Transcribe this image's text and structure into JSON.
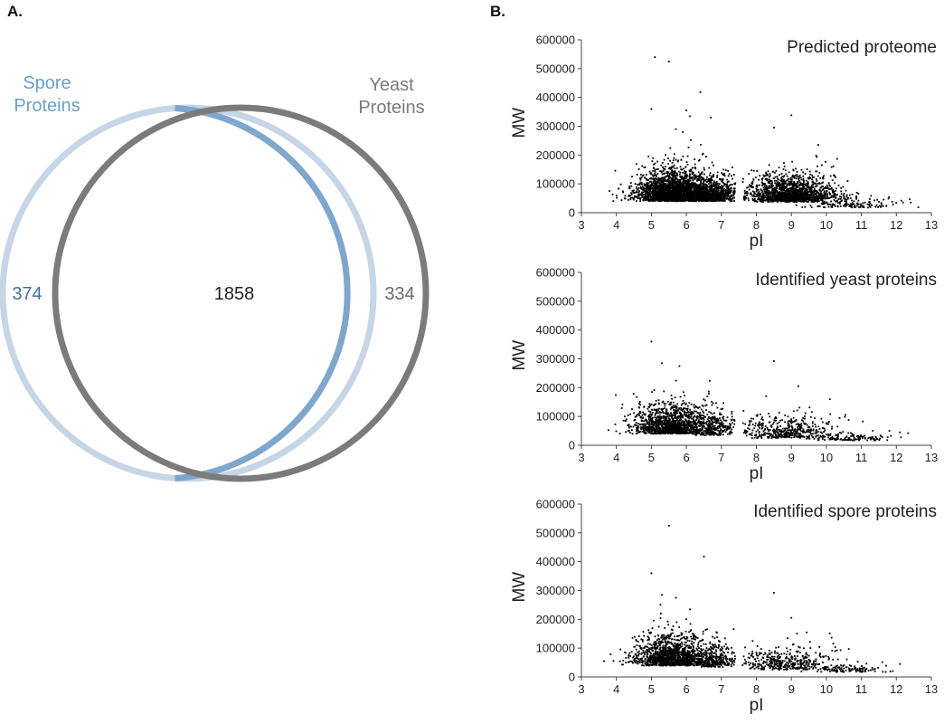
{
  "panels": {
    "a": {
      "label": "A.",
      "venn": {
        "set_a": {
          "name_line1": "Spore",
          "name_line2": "Proteins",
          "only_count": "374",
          "color": "#7fa6cc",
          "color_light": "#c6d6e6",
          "label_color": "#6a9fc6",
          "count_color": "#3f6fa0"
        },
        "set_b": {
          "name_line1": "Yeast",
          "name_line2": "Proteins",
          "only_count": "334",
          "color": "#7b7b7b",
          "label_color": "#7a7a7a",
          "count_color": "#6a6a6a"
        },
        "intersection_count": "1858"
      }
    },
    "b": {
      "label": "B."
    }
  },
  "chart_data": [
    {
      "type": "scatter",
      "title": "Predicted proteome",
      "xlabel": "pI",
      "ylabel": "MW",
      "xlim": [
        3,
        13
      ],
      "ylim": [
        0,
        600000
      ],
      "xticks": [
        "3",
        "4",
        "5",
        "6",
        "7",
        "8",
        "9",
        "10",
        "11",
        "12",
        "13"
      ],
      "yticks": [
        "0",
        "100000",
        "200000",
        "300000",
        "400000",
        "500000",
        "600000"
      ],
      "point_color": "#000000",
      "notable_points": [
        [
          5.1,
          540000
        ],
        [
          5.5,
          525000
        ],
        [
          6.4,
          418000
        ],
        [
          5.0,
          360000
        ],
        [
          6.0,
          355000
        ],
        [
          6.1,
          335000
        ],
        [
          6.7,
          330000
        ],
        [
          9.0,
          338000
        ],
        [
          8.5,
          295000
        ],
        [
          5.7,
          290000
        ],
        [
          5.9,
          280000
        ]
      ],
      "clusters": [
        {
          "x_mean": 5.7,
          "x_sd": 0.55,
          "y_mean": 60000,
          "y_sd": 40000,
          "n": 2600
        },
        {
          "x_mean": 6.8,
          "x_sd": 0.35,
          "y_mean": 55000,
          "y_sd": 30000,
          "n": 600
        },
        {
          "x_mean": 9.0,
          "x_sd": 0.6,
          "y_mean": 55000,
          "y_sd": 35000,
          "n": 1500
        },
        {
          "x_mean": 10.8,
          "x_sd": 0.7,
          "y_mean": 25000,
          "y_sd": 15000,
          "n": 150
        }
      ]
    },
    {
      "type": "scatter",
      "title": "Identified yeast proteins",
      "xlabel": "pI",
      "ylabel": "MW",
      "xlim": [
        3,
        13
      ],
      "ylim": [
        0,
        600000
      ],
      "xticks": [
        "3",
        "4",
        "5",
        "6",
        "7",
        "8",
        "9",
        "10",
        "11",
        "12",
        "13"
      ],
      "yticks": [
        "0",
        "100000",
        "200000",
        "300000",
        "400000",
        "500000",
        "600000"
      ],
      "point_color": "#000000",
      "notable_points": [
        [
          5.0,
          360000
        ],
        [
          8.5,
          292000
        ],
        [
          5.3,
          285000
        ],
        [
          5.8,
          275000
        ],
        [
          9.2,
          205000
        ],
        [
          10.1,
          160000
        ],
        [
          11.8,
          50000
        ],
        [
          12.1,
          45000
        ]
      ],
      "clusters": [
        {
          "x_mean": 5.6,
          "x_sd": 0.55,
          "y_mean": 60000,
          "y_sd": 40000,
          "n": 1300
        },
        {
          "x_mean": 6.8,
          "x_sd": 0.3,
          "y_mean": 50000,
          "y_sd": 30000,
          "n": 250
        },
        {
          "x_mean": 8.8,
          "x_sd": 0.7,
          "y_mean": 40000,
          "y_sd": 30000,
          "n": 450
        },
        {
          "x_mean": 10.7,
          "x_sd": 0.5,
          "y_mean": 22000,
          "y_sd": 10000,
          "n": 120
        }
      ]
    },
    {
      "type": "scatter",
      "title": "Identified spore proteins",
      "xlabel": "pI",
      "ylabel": "MW",
      "xlim": [
        3,
        13
      ],
      "ylim": [
        0,
        600000
      ],
      "xticks": [
        "3",
        "4",
        "5",
        "6",
        "7",
        "8",
        "9",
        "10",
        "11",
        "12",
        "13"
      ],
      "yticks": [
        "0",
        "100000",
        "200000",
        "300000",
        "400000",
        "500000",
        "600000"
      ],
      "point_color": "#000000",
      "notable_points": [
        [
          5.5,
          525000
        ],
        [
          6.5,
          418000
        ],
        [
          5.0,
          360000
        ],
        [
          8.5,
          292000
        ],
        [
          5.3,
          285000
        ],
        [
          5.7,
          275000
        ],
        [
          9.0,
          205000
        ],
        [
          12.1,
          45000
        ]
      ],
      "clusters": [
        {
          "x_mean": 5.6,
          "x_sd": 0.55,
          "y_mean": 60000,
          "y_sd": 42000,
          "n": 1300
        },
        {
          "x_mean": 6.8,
          "x_sd": 0.3,
          "y_mean": 50000,
          "y_sd": 30000,
          "n": 250
        },
        {
          "x_mean": 8.8,
          "x_sd": 0.7,
          "y_mean": 40000,
          "y_sd": 30000,
          "n": 420
        },
        {
          "x_mean": 10.7,
          "x_sd": 0.5,
          "y_mean": 22000,
          "y_sd": 10000,
          "n": 110
        }
      ]
    }
  ]
}
